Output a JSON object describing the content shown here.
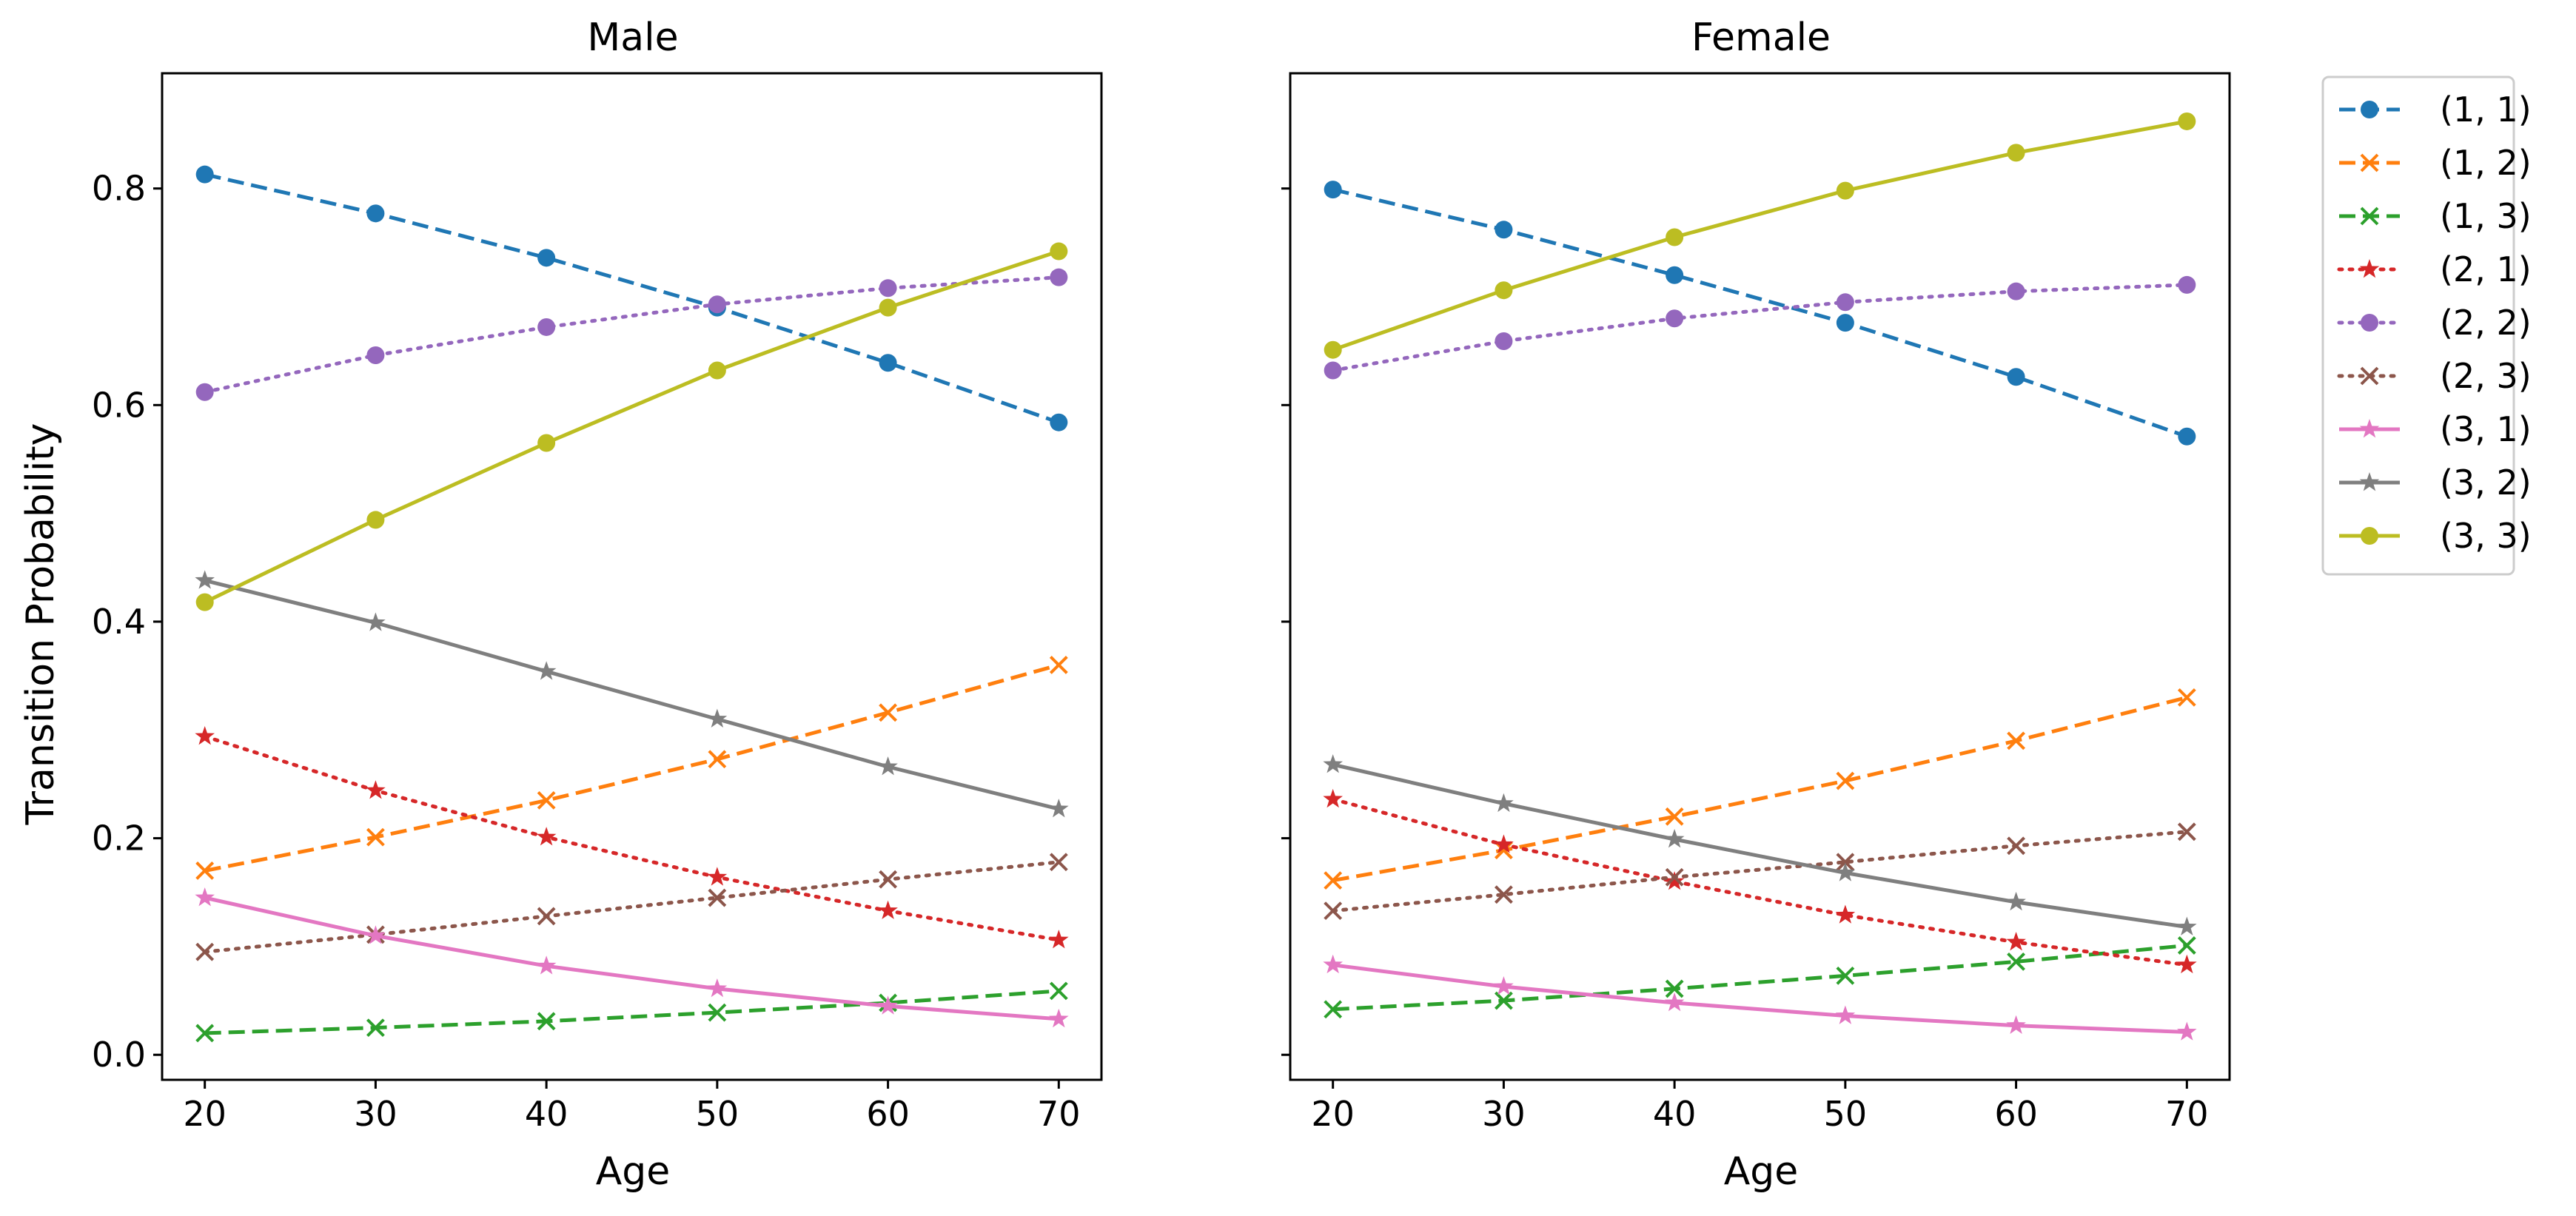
{
  "chart_data": [
    {
      "type": "line",
      "title": "Male",
      "xlabel": "Age",
      "ylabel": "Transition Probability",
      "x": [
        20,
        30,
        40,
        50,
        60,
        70
      ],
      "xlim": [
        17.5,
        72.5
      ],
      "ylim": [
        -0.0231,
        0.9064
      ],
      "xticks": [
        "20",
        "30",
        "40",
        "50",
        "60",
        "70"
      ],
      "yticks": [
        "0.0",
        "0.2",
        "0.4",
        "0.6",
        "0.8"
      ],
      "series": [
        {
          "name": "(1, 1)",
          "values": [
            0.813,
            0.777,
            0.736,
            0.69,
            0.639,
            0.584
          ]
        },
        {
          "name": "(1, 2)",
          "values": [
            0.17,
            0.201,
            0.235,
            0.273,
            0.316,
            0.36
          ]
        },
        {
          "name": "(1, 3)",
          "values": [
            0.02,
            0.025,
            0.031,
            0.039,
            0.048,
            0.059
          ]
        },
        {
          "name": "(2, 1)",
          "values": [
            0.294,
            0.244,
            0.201,
            0.164,
            0.133,
            0.106
          ]
        },
        {
          "name": "(2, 2)",
          "values": [
            0.612,
            0.646,
            0.672,
            0.693,
            0.708,
            0.718
          ]
        },
        {
          "name": "(2, 3)",
          "values": [
            0.095,
            0.111,
            0.128,
            0.145,
            0.162,
            0.178
          ]
        },
        {
          "name": "(3, 1)",
          "values": [
            0.145,
            0.11,
            0.082,
            0.061,
            0.045,
            0.033
          ]
        },
        {
          "name": "(3, 2)",
          "values": [
            0.438,
            0.399,
            0.354,
            0.31,
            0.266,
            0.227
          ]
        },
        {
          "name": "(3, 3)",
          "values": [
            0.418,
            0.494,
            0.565,
            0.632,
            0.69,
            0.742
          ]
        }
      ]
    },
    {
      "type": "line",
      "title": "Female",
      "xlabel": "Age",
      "ylabel": "",
      "x": [
        20,
        30,
        40,
        50,
        60,
        70
      ],
      "xlim": [
        17.5,
        72.5
      ],
      "ylim": [
        -0.0231,
        0.9064
      ],
      "xticks": [
        "20",
        "30",
        "40",
        "50",
        "60",
        "70"
      ],
      "yticks": [
        "",
        "",
        "",
        "",
        ""
      ],
      "series": [
        {
          "name": "(1, 1)",
          "values": [
            0.799,
            0.762,
            0.72,
            0.676,
            0.626,
            0.571
          ]
        },
        {
          "name": "(1, 2)",
          "values": [
            0.161,
            0.189,
            0.22,
            0.253,
            0.29,
            0.33
          ]
        },
        {
          "name": "(1, 3)",
          "values": [
            0.042,
            0.05,
            0.061,
            0.073,
            0.086,
            0.101
          ]
        },
        {
          "name": "(2, 1)",
          "values": [
            0.236,
            0.194,
            0.16,
            0.129,
            0.104,
            0.083
          ]
        },
        {
          "name": "(2, 2)",
          "values": [
            0.632,
            0.659,
            0.68,
            0.695,
            0.705,
            0.711
          ]
        },
        {
          "name": "(2, 3)",
          "values": [
            0.133,
            0.148,
            0.164,
            0.178,
            0.193,
            0.206
          ]
        },
        {
          "name": "(3, 1)",
          "values": [
            0.083,
            0.063,
            0.048,
            0.036,
            0.027,
            0.021
          ]
        },
        {
          "name": "(3, 2)",
          "values": [
            0.268,
            0.232,
            0.199,
            0.168,
            0.141,
            0.118
          ]
        },
        {
          "name": "(3, 3)",
          "values": [
            0.651,
            0.706,
            0.755,
            0.798,
            0.833,
            0.862
          ]
        }
      ]
    }
  ],
  "legend": {
    "placement": "outside-right",
    "entries": [
      {
        "label": "(1, 1)",
        "color": "#1f77b4",
        "dash": "dashed",
        "marker": "circle"
      },
      {
        "label": "(1, 2)",
        "color": "#ff7f0e",
        "dash": "dashed",
        "marker": "x"
      },
      {
        "label": "(1, 3)",
        "color": "#2ca02c",
        "dash": "dashed",
        "marker": "x"
      },
      {
        "label": "(2, 1)",
        "color": "#d62728",
        "dash": "dotted",
        "marker": "star"
      },
      {
        "label": "(2, 2)",
        "color": "#9467bd",
        "dash": "dotted",
        "marker": "circle"
      },
      {
        "label": "(2, 3)",
        "color": "#8c564b",
        "dash": "dotted",
        "marker": "x"
      },
      {
        "label": "(3, 1)",
        "color": "#e377c2",
        "dash": "solid",
        "marker": "star"
      },
      {
        "label": "(3, 2)",
        "color": "#7f7f7f",
        "dash": "solid",
        "marker": "star"
      },
      {
        "label": "(3, 3)",
        "color": "#bcbd22",
        "dash": "solid",
        "marker": "circle"
      }
    ]
  }
}
